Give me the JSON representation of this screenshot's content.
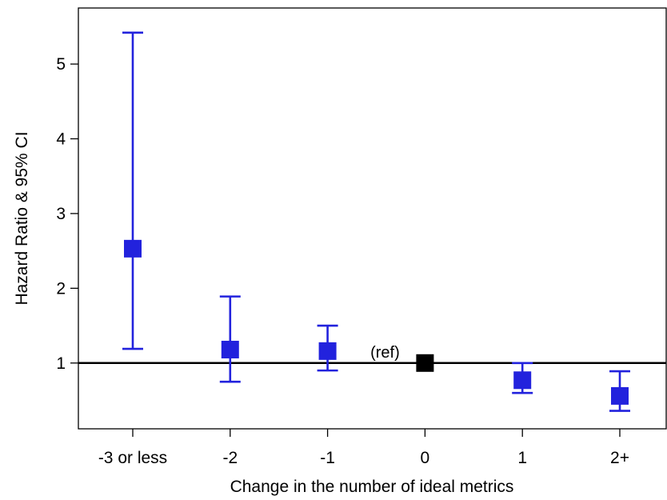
{
  "chart_data": {
    "type": "scatter",
    "xlabel": "Change in the number of ideal metrics",
    "ylabel": "Hazard Ratio & 95% CI",
    "categories": [
      "-3 or less",
      "-2",
      "-1",
      "0",
      "1",
      "2+"
    ],
    "ylim": [
      0.12,
      5.75
    ],
    "yticks": [
      1,
      2,
      3,
      4,
      5
    ],
    "reference_line": 1,
    "grid": false,
    "series": [
      {
        "estimates": [
          2.53,
          1.18,
          1.16,
          1.0,
          0.77,
          0.56
        ],
        "ci_lower": [
          1.19,
          0.75,
          0.9,
          null,
          0.6,
          0.36
        ],
        "ci_upper": [
          5.42,
          1.89,
          1.5,
          null,
          1.0,
          0.89
        ]
      }
    ],
    "reference_category": "0",
    "annotations": [
      {
        "text": "(ref)",
        "category": "0"
      }
    ],
    "colors": {
      "estimate": "#2222dd",
      "reference": "#000000",
      "line": "#000000"
    }
  }
}
